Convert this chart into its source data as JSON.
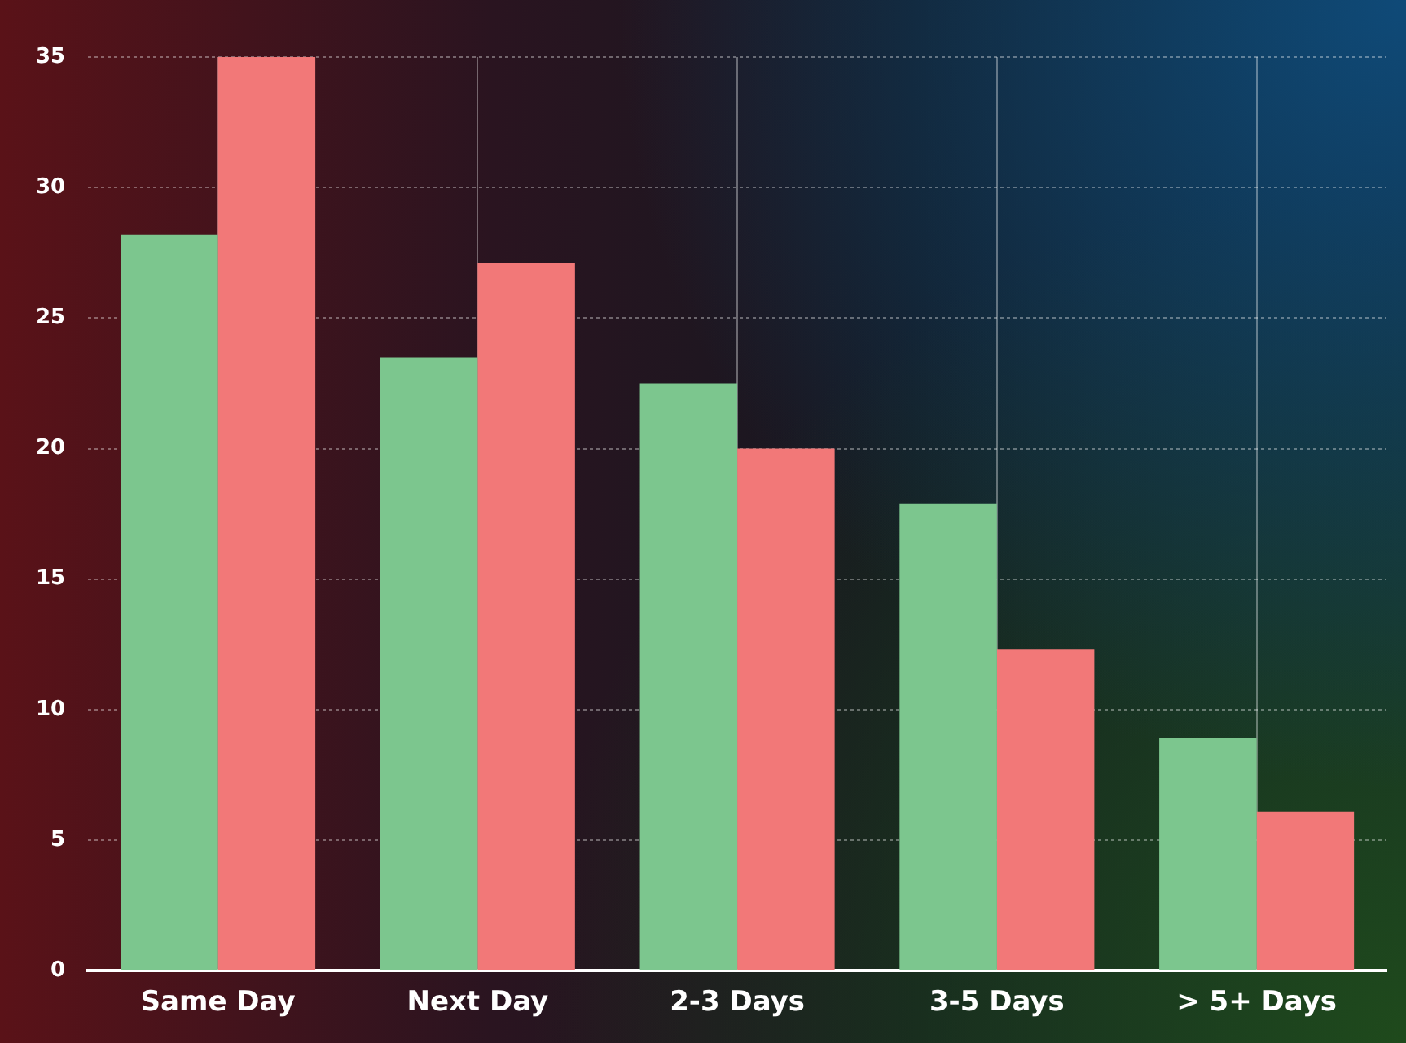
{
  "chart_data": {
    "type": "bar",
    "categories": [
      "Same Day",
      "Next Day",
      "2-3 Days",
      "3-5 Days",
      "> 5+ Days"
    ],
    "series": [
      {
        "color": "#7cc68e",
        "values": [
          28.2,
          23.5,
          22.5,
          17.9,
          8.9
        ]
      },
      {
        "color": "#f27878",
        "values": [
          35,
          27.1,
          20.0,
          12.3,
          6.1
        ]
      }
    ],
    "ylim": [
      0,
      35
    ],
    "yticks": [
      0,
      5,
      10,
      15,
      20,
      25,
      30,
      35
    ],
    "grid": true
  }
}
